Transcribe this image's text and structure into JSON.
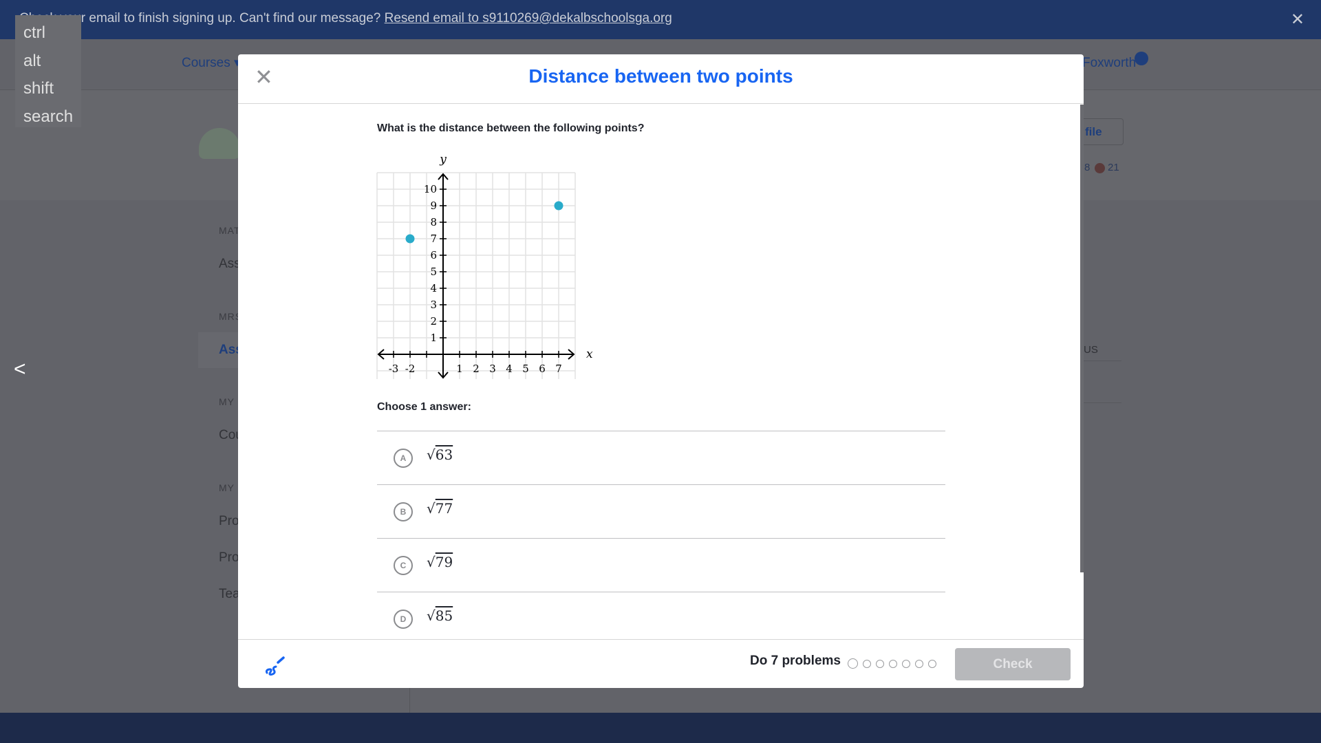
{
  "banner": {
    "message": "Check your email to finish signing up. Can't find our message?",
    "link": "Resend email to s9110269@dekalbschoolsga.org",
    "close_icon": "close-icon"
  },
  "keys_overlay": [
    "ctrl",
    "alt",
    "shift",
    "search"
  ],
  "background": {
    "nav": {
      "courses": "Courses ▾",
      "user": "Foxworth"
    },
    "profile_button": "file",
    "stats": {
      "left": "8",
      "right": "21"
    },
    "sidebar": {
      "heads": [
        "MAT",
        "MRS",
        "MY",
        "MY"
      ],
      "items": [
        "Ass",
        "Ass",
        "Cou",
        "Pro",
        "Pro",
        "Tea"
      ]
    },
    "table_header": "US"
  },
  "modal": {
    "title": "Distance between two points",
    "question": "What is the distance between the following points?",
    "choose_label": "Choose 1 answer:",
    "choices": [
      {
        "letter": "A",
        "value": "63"
      },
      {
        "letter": "B",
        "value": "77"
      },
      {
        "letter": "C",
        "value": "79"
      },
      {
        "letter": "D",
        "value": "85"
      }
    ],
    "footer": {
      "progress_label": "Do 7 problems",
      "problem_count": 7,
      "completed": 0,
      "check_label": "Check"
    }
  },
  "chart_data": {
    "type": "scatter",
    "xlabel": "x",
    "ylabel": "y",
    "xlim": [
      -4,
      8
    ],
    "ylim": [
      -1.5,
      11
    ],
    "x_tick_labels": [
      "-3",
      "-2",
      "1",
      "2",
      "3",
      "4",
      "5",
      "6",
      "7"
    ],
    "y_tick_labels": [
      "1",
      "2",
      "3",
      "4",
      "5",
      "6",
      "7",
      "8",
      "9",
      "10"
    ],
    "grid": true,
    "points": [
      {
        "x": -2,
        "y": 7
      },
      {
        "x": 7,
        "y": 9
      }
    ],
    "point_color": "#29abca"
  }
}
